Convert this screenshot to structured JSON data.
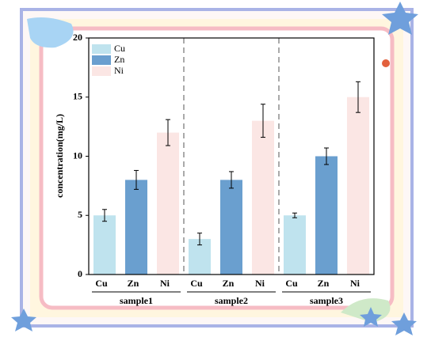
{
  "chart_data": {
    "type": "bar",
    "y_label": "concentration(mg/L)",
    "groups": [
      "sample1",
      "sample2",
      "sample3"
    ],
    "series": [
      {
        "name": "Cu",
        "color": "#bfe3ee",
        "values": [
          5,
          3,
          5
        ],
        "errors": [
          0.5,
          0.5,
          0.2
        ]
      },
      {
        "name": "Zn",
        "color": "#6a9fcf",
        "values": [
          8,
          8,
          10
        ],
        "errors": [
          0.8,
          0.7,
          0.7
        ]
      },
      {
        "name": "Ni",
        "color": "#fbe6e4",
        "values": [
          12,
          13,
          15
        ],
        "errors": [
          1.1,
          1.4,
          1.3
        ]
      }
    ],
    "ylim": [
      0,
      20
    ],
    "yticks": [
      0,
      5,
      10,
      15,
      20
    ],
    "legend": "upper left"
  }
}
